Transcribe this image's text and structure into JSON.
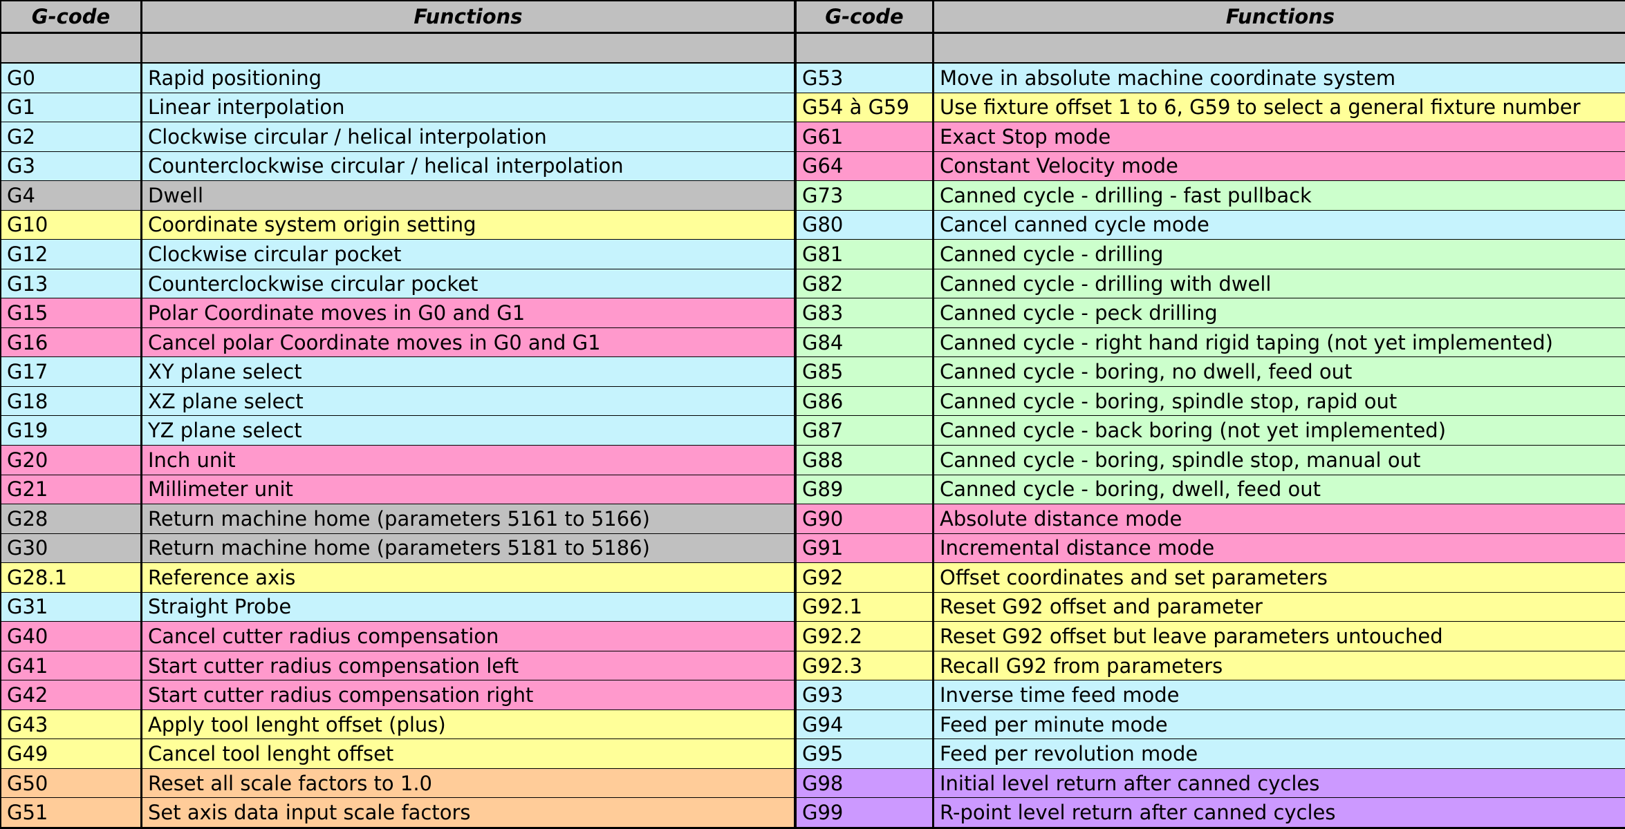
{
  "table": {
    "header": [
      "G-code",
      "Functions",
      "G-code",
      "Functions"
    ],
    "rows": [
      {
        "left": {
          "code": "G0",
          "function": "Rapid positioning",
          "color": "#c6f3fd"
        },
        "right": {
          "code": "G53",
          "function": "Move in absolute machine coordinate system",
          "color": "#c6f3fd"
        }
      },
      {
        "left": {
          "code": "G1",
          "function": "Linear interpolation",
          "color": "#c6f3fd"
        },
        "right": {
          "code": "G54 à G59",
          "function": "Use fixture offset 1 to 6, G59 to select a general fixture number",
          "color": "#ffff99"
        }
      },
      {
        "left": {
          "code": "G2",
          "function": "Clockwise circular / helical interpolation",
          "color": "#c6f3fd"
        },
        "right": {
          "code": "G61",
          "function": "Exact Stop mode",
          "color": "#ff99cc"
        }
      },
      {
        "left": {
          "code": "G3",
          "function": "Counterclockwise circular / helical interpolation",
          "color": "#c6f3fd"
        },
        "right": {
          "code": "G64",
          "function": "Constant Velocity mode",
          "color": "#ff99cc"
        }
      },
      {
        "left": {
          "code": "G4",
          "function": "Dwell",
          "color": "#c0c0c0"
        },
        "right": {
          "code": "G73",
          "function": "Canned cycle - drilling - fast pullback",
          "color": "#ccffcc"
        }
      },
      {
        "left": {
          "code": "G10",
          "function": "Coordinate system origin setting",
          "color": "#ffff99"
        },
        "right": {
          "code": "G80",
          "function": "Cancel canned cycle mode",
          "color": "#c6f3fd"
        }
      },
      {
        "left": {
          "code": "G12",
          "function": "Clockwise circular pocket",
          "color": "#c6f3fd"
        },
        "right": {
          "code": "G81",
          "function": "Canned cycle - drilling",
          "color": "#ccffcc"
        }
      },
      {
        "left": {
          "code": "G13",
          "function": "Counterclockwise circular pocket",
          "color": "#c6f3fd"
        },
        "right": {
          "code": "G82",
          "function": "Canned cycle - drilling with dwell",
          "color": "#ccffcc"
        }
      },
      {
        "left": {
          "code": "G15",
          "function": "Polar Coordinate moves in G0 and G1",
          "color": "#ff99cc"
        },
        "right": {
          "code": "G83",
          "function": "Canned cycle - peck drilling",
          "color": "#ccffcc"
        }
      },
      {
        "left": {
          "code": "G16",
          "function": "Cancel polar Coordinate moves in G0 and G1",
          "color": "#ff99cc"
        },
        "right": {
          "code": "G84",
          "function": "Canned cycle - right hand rigid taping (not yet implemented)",
          "color": "#ccffcc"
        }
      },
      {
        "left": {
          "code": "G17",
          "function": "XY plane select",
          "color": "#c6f3fd"
        },
        "right": {
          "code": "G85",
          "function": "Canned cycle - boring, no dwell, feed out",
          "color": "#ccffcc"
        }
      },
      {
        "left": {
          "code": "G18",
          "function": "XZ plane select",
          "color": "#c6f3fd"
        },
        "right": {
          "code": "G86",
          "function": "Canned cycle - boring, spindle stop, rapid out",
          "color": "#ccffcc"
        }
      },
      {
        "left": {
          "code": "G19",
          "function": "YZ plane select",
          "color": "#c6f3fd"
        },
        "right": {
          "code": "G87",
          "function": "Canned cycle - back boring (not yet implemented)",
          "color": "#ccffcc"
        }
      },
      {
        "left": {
          "code": "G20",
          "function": "Inch unit",
          "color": "#ff99cc"
        },
        "right": {
          "code": "G88",
          "function": "Canned cycle - boring, spindle stop, manual out",
          "color": "#ccffcc"
        }
      },
      {
        "left": {
          "code": "G21",
          "function": "Millimeter unit",
          "color": "#ff99cc"
        },
        "right": {
          "code": "G89",
          "function": "Canned cycle - boring, dwell, feed out",
          "color": "#ccffcc"
        }
      },
      {
        "left": {
          "code": "G28",
          "function": "Return machine home (parameters 5161 to 5166)",
          "color": "#c0c0c0"
        },
        "right": {
          "code": "G90",
          "function": "Absolute distance mode",
          "color": "#ff99cc"
        }
      },
      {
        "left": {
          "code": "G30",
          "function": "Return machine home (parameters 5181 to 5186)",
          "color": "#c0c0c0"
        },
        "right": {
          "code": "G91",
          "function": "Incremental distance mode",
          "color": "#ff99cc"
        }
      },
      {
        "left": {
          "code": "G28.1",
          "function": "Reference axis",
          "color": "#ffff99"
        },
        "right": {
          "code": "G92",
          "function": "Offset coordinates and set parameters",
          "color": "#ffff99"
        }
      },
      {
        "left": {
          "code": "G31",
          "function": "Straight Probe",
          "color": "#c6f3fd"
        },
        "right": {
          "code": "G92.1",
          "function": "Reset G92 offset and parameter",
          "color": "#ffff99"
        }
      },
      {
        "left": {
          "code": "G40",
          "function": "Cancel cutter radius compensation",
          "color": "#ff99cc"
        },
        "right": {
          "code": "G92.2",
          "function": "Reset G92 offset but leave parameters untouched",
          "color": "#ffff99"
        }
      },
      {
        "left": {
          "code": "G41",
          "function": "Start cutter radius compensation left",
          "color": "#ff99cc"
        },
        "right": {
          "code": "G92.3",
          "function": "Recall G92 from parameters",
          "color": "#ffff99"
        }
      },
      {
        "left": {
          "code": "G42",
          "function": "Start cutter radius compensation right",
          "color": "#ff99cc"
        },
        "right": {
          "code": "G93",
          "function": "Inverse time feed mode",
          "color": "#c6f3fd"
        }
      },
      {
        "left": {
          "code": "G43",
          "function": "Apply tool lenght offset (plus)",
          "color": "#ffff99"
        },
        "right": {
          "code": "G94",
          "function": "Feed per minute mode",
          "color": "#c6f3fd"
        }
      },
      {
        "left": {
          "code": "G49",
          "function": "Cancel tool lenght offset",
          "color": "#ffff99"
        },
        "right": {
          "code": "G95",
          "function": "Feed per revolution mode",
          "color": "#c6f3fd"
        }
      },
      {
        "left": {
          "code": "G50",
          "function": "Reset all scale factors to 1.0",
          "color": "#ffcc99"
        },
        "right": {
          "code": "G98",
          "function": "Initial level return after canned cycles",
          "color": "#cc99ff"
        }
      },
      {
        "left": {
          "code": "G51",
          "function": "Set axis data input scale factors",
          "color": "#ffcc99"
        },
        "right": {
          "code": "G99",
          "function": "R-point level return after canned cycles",
          "color": "#cc99ff"
        }
      }
    ]
  }
}
